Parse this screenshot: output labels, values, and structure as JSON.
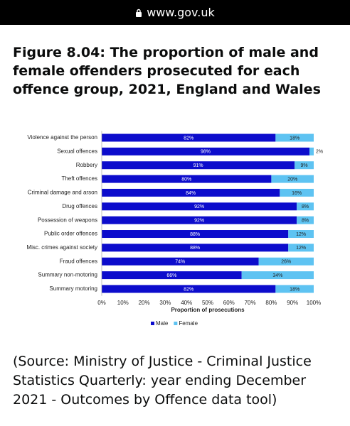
{
  "url": "www.gov.uk",
  "heading": "Figure 8.04: The proportion of male and female offenders prosecuted for each offence group, 2021, England and Wales",
  "source": "(Source: Ministry of Justice - Criminal Justice Statistics Quarterly: year ending December 2021 - Outcomes by Offence data tool)",
  "chart_data": {
    "type": "stacked-barh",
    "xlabel": "Proportion of prosecutions",
    "categories": [
      "Violence against the person",
      "Sexual offences",
      "Robbery",
      "Theft offences",
      "Criminal damage and arson",
      "Drug offences",
      "Possession of weapons",
      "Public order offences",
      "Misc. crimes against society",
      "Fraud offences",
      "Summary non-motoring",
      "Summary motoring"
    ],
    "series": [
      {
        "name": "Male",
        "color": "#0c0ccc",
        "values": [
          82,
          98,
          91,
          80,
          84,
          92,
          92,
          88,
          88,
          74,
          66,
          82
        ],
        "value_labels": [
          "82%",
          "98%",
          "91%",
          "80%",
          "84%",
          "92%",
          "92%",
          "88%",
          "88%",
          "74%",
          "66%",
          "82%"
        ]
      },
      {
        "name": "Female",
        "color": "#5ec3f2",
        "values": [
          18,
          2,
          9,
          20,
          16,
          8,
          8,
          12,
          12,
          26,
          34,
          18
        ],
        "value_labels": [
          "18%",
          "2%",
          "9%",
          "20%",
          "16%",
          "8%",
          "8%",
          "12%",
          "12%",
          "26%",
          "34%",
          "18%"
        ]
      }
    ],
    "xlim": [
      0,
      100
    ],
    "xticks": [
      {
        "value": 0,
        "label": "0%"
      },
      {
        "value": 10,
        "label": "10%"
      },
      {
        "value": 20,
        "label": "20%"
      },
      {
        "value": 30,
        "label": "30%"
      },
      {
        "value": 40,
        "label": "40%"
      },
      {
        "value": 50,
        "label": "50%"
      },
      {
        "value": 60,
        "label": "60%"
      },
      {
        "value": 70,
        "label": "70%"
      },
      {
        "value": 80,
        "label": "80%"
      },
      {
        "value": 90,
        "label": "90%"
      },
      {
        "value": 100,
        "label": "100%"
      }
    ],
    "legend": "bottom"
  }
}
